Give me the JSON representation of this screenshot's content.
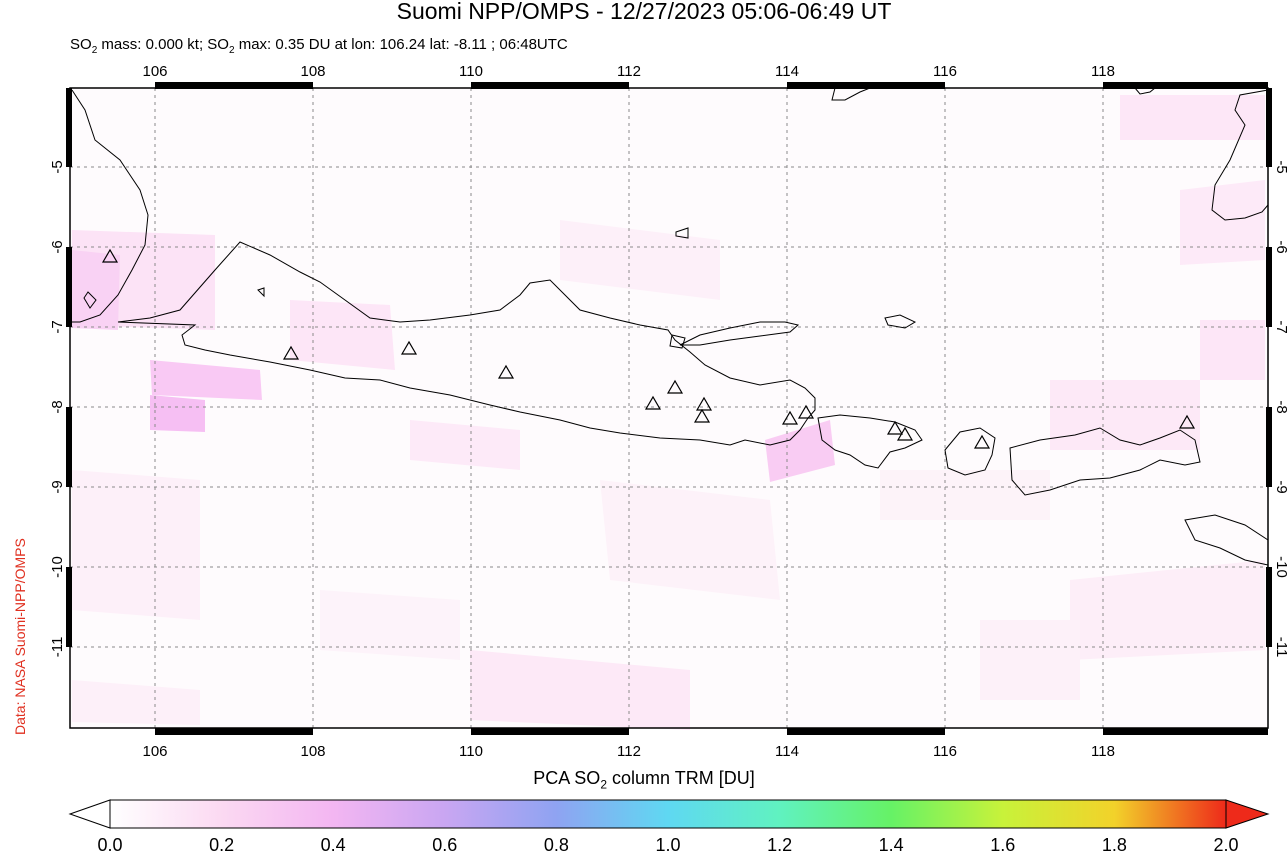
{
  "header": {
    "title": "Suomi NPP/OMPS - 12/27/2023 05:06-06:49 UT",
    "subtitle_prefix": "SO",
    "subtitle_sub": "2",
    "subtitle_mid": " mass: 0.000 kt; SO",
    "subtitle_sub2": "2",
    "subtitle_suffix": " max: 0.35 DU at lon: 106.24 lat: -8.11 ; 06:48UTC"
  },
  "credit": "Data: NASA Suomi-NPP/OMPS",
  "map": {
    "lon_ticks": [
      "106",
      "108",
      "110",
      "112",
      "114",
      "116",
      "118"
    ],
    "lat_ticks": [
      "-5",
      "-6",
      "-7",
      "-8",
      "-9",
      "-10",
      "-11"
    ],
    "lon_range": [
      104.9,
      120.0
    ],
    "lat_range": [
      -12.0,
      -4.0
    ],
    "volcano_marker": "triangle-icon",
    "volcano_count": 17
  },
  "colorbar": {
    "label_prefix": "PCA SO",
    "label_sub": "2",
    "label_suffix": " column TRM [DU]",
    "ticks": [
      "0.0",
      "0.2",
      "0.4",
      "0.6",
      "0.8",
      "1.0",
      "1.2",
      "1.4",
      "1.6",
      "1.8",
      "2.0"
    ],
    "range": [
      0.0,
      2.0
    ],
    "colors": [
      "#ffffff",
      "#fbd9f2",
      "#f3b6f2",
      "#c9a6f2",
      "#8fa3f2",
      "#5fd8f2",
      "#60f2c0",
      "#66f266",
      "#c8f23a",
      "#f2d22a",
      "#f2722a",
      "#ee2a1a"
    ]
  }
}
